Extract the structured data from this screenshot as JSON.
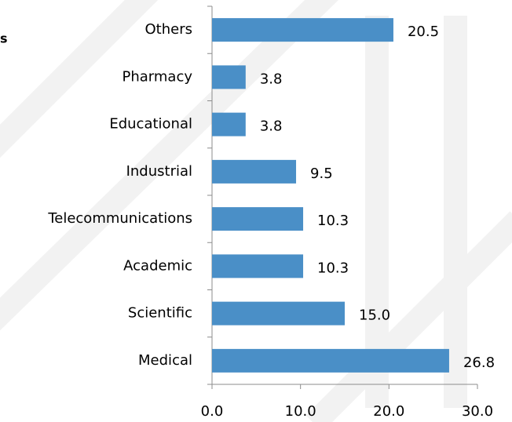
{
  "chart_data": {
    "type": "barh",
    "title": "s",
    "categories": [
      "Others",
      "Pharmacy",
      "Educational",
      "Industrial",
      "Telecommunications",
      "Academic",
      "Scientific",
      "Medical"
    ],
    "values": [
      20.5,
      3.8,
      3.8,
      9.5,
      10.3,
      10.3,
      15.0,
      26.8
    ],
    "value_labels": [
      "20.5",
      "3.8",
      "3.8",
      "9.5",
      "10.3",
      "10.3",
      "15.0",
      "26.8"
    ],
    "color": "#4a8fc7",
    "xlim": [
      0,
      30
    ],
    "xticks": [
      {
        "value": 0,
        "label": "0.0"
      },
      {
        "value": 10,
        "label": "10.0"
      },
      {
        "value": 20,
        "label": "20.0"
      },
      {
        "value": 30,
        "label": "30.0"
      }
    ]
  }
}
